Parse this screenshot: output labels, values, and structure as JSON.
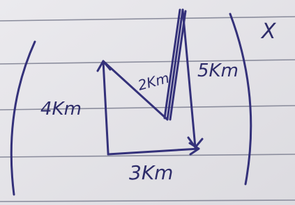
{
  "labels": {
    "left": "4Km",
    "diagonal": "2Km",
    "right": "5Km",
    "bottom": "3Km"
  },
  "mark": "X"
}
